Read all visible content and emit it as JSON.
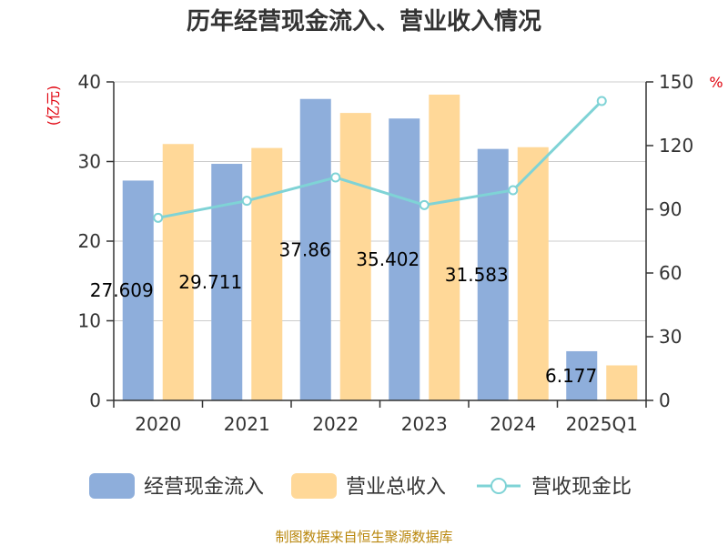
{
  "chart_data": {
    "type": "bar",
    "title": "历年经营现金流入、营业收入情况",
    "categories": [
      "2020",
      "2021",
      "2022",
      "2023",
      "2024",
      "2025Q1"
    ],
    "series": [
      {
        "name": "经营现金流入",
        "type": "bar",
        "axis": "left",
        "color": "#8eaedb",
        "values": [
          27.609,
          29.711,
          37.86,
          35.402,
          31.583,
          6.177
        ],
        "labels": [
          "27.609",
          "29.711",
          "37.86",
          "35.402",
          "31.583",
          "6.177"
        ]
      },
      {
        "name": "营业总收入",
        "type": "bar",
        "axis": "left",
        "color": "#ffd898",
        "values": [
          32.2,
          31.7,
          36.1,
          38.4,
          31.8,
          4.4
        ]
      },
      {
        "name": "营收现金比",
        "type": "line",
        "axis": "right",
        "color": "#7fd3d6",
        "values": [
          86,
          94,
          105,
          92,
          99,
          141
        ]
      }
    ],
    "left_axis": {
      "unit_label": "(亿元)",
      "ylim": [
        0,
        40
      ],
      "ticks": [
        "0",
        "10",
        "20",
        "30",
        "40"
      ]
    },
    "right_axis": {
      "unit_label": "%",
      "ylim": [
        0,
        150
      ],
      "ticks": [
        "0",
        "30",
        "60",
        "90",
        "120",
        "150"
      ]
    },
    "grid": true,
    "legend": "bottom-center"
  },
  "source": "制图数据来自恒生聚源数据库"
}
